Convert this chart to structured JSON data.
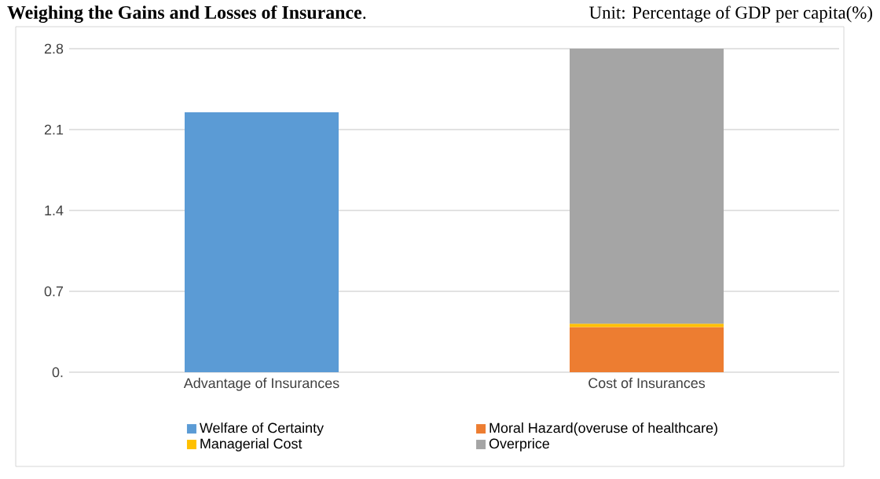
{
  "chart_data": {
    "type": "bar",
    "title": "**Weighing the Gains and Losses of Insurance**.",
    "subtitle": "Unit: Percentage of GDP per capita(%)",
    "categories": [
      "Advantage of Insurances",
      "Cost of Insurances"
    ],
    "stacked": true,
    "series": [
      {
        "name": "Welfare of Certainty",
        "color": "#5b9bd5",
        "values": [
          2.25,
          null
        ]
      },
      {
        "name": "Moral Hazard(overuse of healthcare)",
        "color": "#ed7d31",
        "values": [
          null,
          0.39
        ]
      },
      {
        "name": "Managerial Cost",
        "color": "#ffc000",
        "values": [
          null,
          0.03
        ]
      },
      {
        "name": "Overprice",
        "color": "#a5a5a5",
        "values": [
          null,
          2.38
        ]
      }
    ],
    "ylim": [
      0,
      2.8
    ],
    "yticks": [
      {
        "value": 0,
        "label": "0."
      },
      0.7,
      1.4,
      2.1,
      2.8
    ],
    "grid": "y",
    "legend": "bottom"
  }
}
